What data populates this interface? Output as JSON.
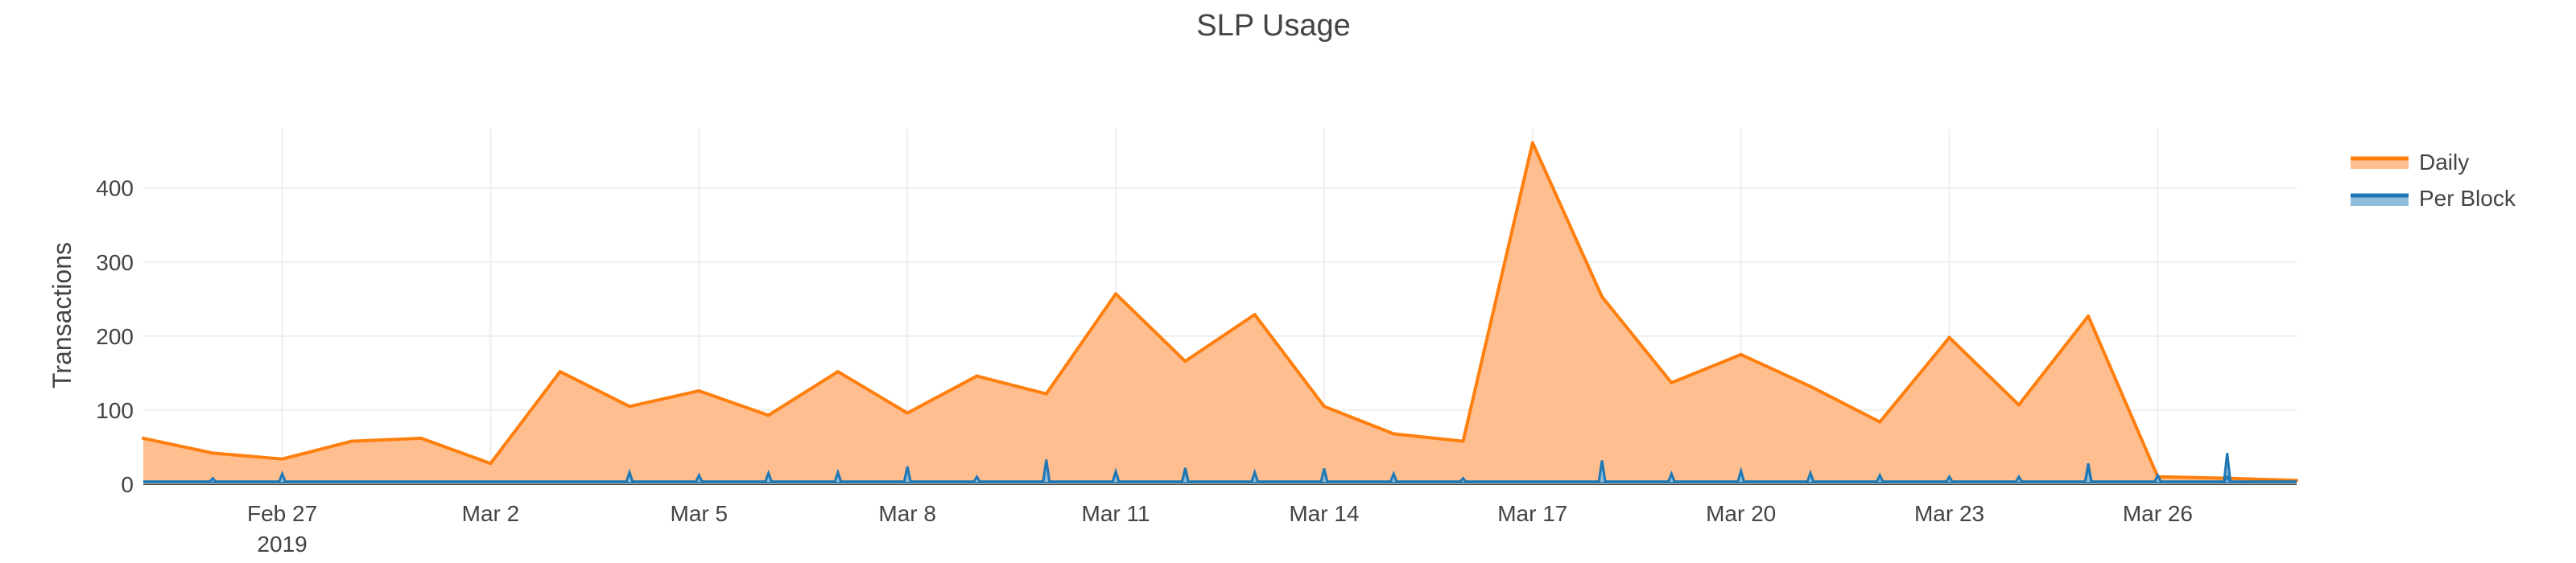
{
  "chart_data": {
    "type": "area",
    "title": "SLP Usage",
    "xlabel": "",
    "ylabel": "Transactions",
    "ylim": [
      0,
      480
    ],
    "yticks": [
      0,
      100,
      200,
      300,
      400
    ],
    "xlim": [
      "2019-02-25",
      "2019-03-28"
    ],
    "xticks": [
      {
        "date": "2019-02-27",
        "label": "Feb 27",
        "sublabel": "2019"
      },
      {
        "date": "2019-03-02",
        "label": "Mar 2",
        "sublabel": ""
      },
      {
        "date": "2019-03-05",
        "label": "Mar 5",
        "sublabel": ""
      },
      {
        "date": "2019-03-08",
        "label": "Mar 8",
        "sublabel": ""
      },
      {
        "date": "2019-03-11",
        "label": "Mar 11",
        "sublabel": ""
      },
      {
        "date": "2019-03-14",
        "label": "Mar 14",
        "sublabel": ""
      },
      {
        "date": "2019-03-17",
        "label": "Mar 17",
        "sublabel": ""
      },
      {
        "date": "2019-03-20",
        "label": "Mar 20",
        "sublabel": ""
      },
      {
        "date": "2019-03-23",
        "label": "Mar 23",
        "sublabel": ""
      },
      {
        "date": "2019-03-26",
        "label": "Mar 26",
        "sublabel": ""
      }
    ],
    "grid": true,
    "legend_position": "top-right",
    "series": [
      {
        "name": "Daily",
        "color": "#ff7f0e",
        "fill": "#ffbe8f",
        "x": [
          "2019-02-25",
          "2019-02-26",
          "2019-02-27",
          "2019-02-28",
          "2019-03-01",
          "2019-03-02",
          "2019-03-03",
          "2019-03-04",
          "2019-03-05",
          "2019-03-06",
          "2019-03-07",
          "2019-03-08",
          "2019-03-09",
          "2019-03-10",
          "2019-03-11",
          "2019-03-12",
          "2019-03-13",
          "2019-03-14",
          "2019-03-15",
          "2019-03-16",
          "2019-03-17",
          "2019-03-18",
          "2019-03-19",
          "2019-03-20",
          "2019-03-21",
          "2019-03-22",
          "2019-03-23",
          "2019-03-24",
          "2019-03-25",
          "2019-03-26",
          "2019-03-27",
          "2019-03-28"
        ],
        "y": [
          62,
          42,
          34,
          58,
          62,
          28,
          152,
          105,
          126,
          93,
          152,
          96,
          146,
          122,
          257,
          166,
          229,
          105,
          68,
          58,
          461,
          253,
          137,
          175,
          132,
          84,
          198,
          107,
          227,
          10,
          8,
          5
        ]
      },
      {
        "name": "Per Block",
        "color": "#1f77b4",
        "fill": "#8fbbda",
        "x": [
          "2019-02-26",
          "2019-02-27",
          "2019-03-04",
          "2019-03-04",
          "2019-03-05",
          "2019-03-06",
          "2019-03-07",
          "2019-03-08",
          "2019-03-09",
          "2019-03-10",
          "2019-03-11",
          "2019-03-12",
          "2019-03-12",
          "2019-03-13",
          "2019-03-14",
          "2019-03-15",
          "2019-03-16",
          "2019-03-18",
          "2019-03-18",
          "2019-03-19",
          "2019-03-20",
          "2019-03-21",
          "2019-03-22",
          "2019-03-23",
          "2019-03-24",
          "2019-03-25",
          "2019-03-25",
          "2019-03-26",
          "2019-03-27",
          "2019-03-27"
        ],
        "y": [
          8,
          14,
          12,
          16,
          12,
          15,
          16,
          24,
          10,
          33,
          17,
          22,
          20,
          16,
          21,
          14,
          8,
          16,
          32,
          14,
          18,
          15,
          12,
          10,
          10,
          28,
          24,
          12,
          42,
          10
        ]
      }
    ]
  }
}
